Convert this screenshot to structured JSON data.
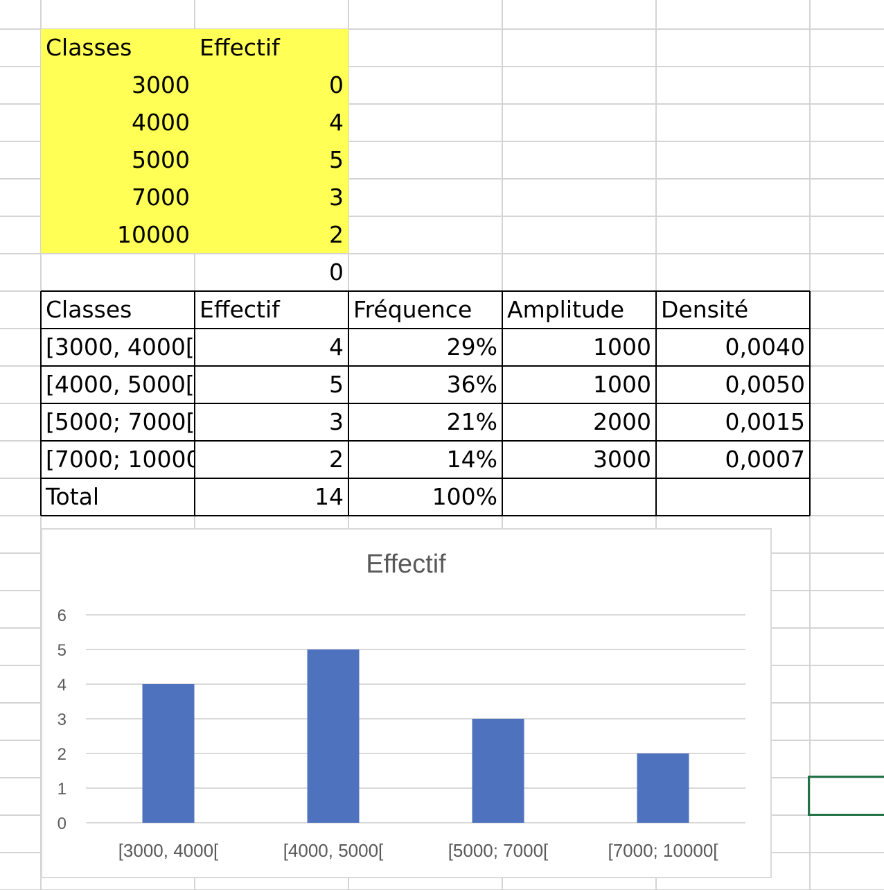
{
  "input_table": {
    "headers": [
      "Classes",
      "Effectif"
    ],
    "rows": [
      [
        "3000",
        "0"
      ],
      [
        "4000",
        "4"
      ],
      [
        "5000",
        "5"
      ],
      [
        "7000",
        "3"
      ],
      [
        "10000",
        "2"
      ],
      [
        "",
        "0"
      ]
    ]
  },
  "summary_table": {
    "headers": [
      "Classes",
      "Effectif",
      "Fréquence",
      "Amplitude",
      "Densité"
    ],
    "rows": [
      [
        "[3000, 4000[",
        "4",
        "29%",
        "1000",
        "0,0040"
      ],
      [
        "[4000, 5000[",
        "5",
        "36%",
        "1000",
        "0,0050"
      ],
      [
        "[5000; 7000[",
        "3",
        "21%",
        "2000",
        "0,0015"
      ],
      [
        "[7000; 10000",
        "2",
        "14%",
        "3000",
        "0,0007"
      ],
      [
        "Total",
        "14",
        "100%",
        "",
        ""
      ]
    ]
  },
  "chart_data": {
    "type": "bar",
    "title": "Effectif",
    "categories": [
      "[3000, 4000[",
      "[4000, 5000[",
      "[5000; 7000[",
      "[7000; 10000["
    ],
    "values": [
      4,
      5,
      3,
      2
    ],
    "ylim": [
      0,
      6
    ],
    "yticks": [
      0,
      1,
      2,
      3,
      4,
      5,
      6
    ],
    "xlabel": "",
    "ylabel": "",
    "grid": true,
    "legend": "none",
    "bar_color": "#4f72be"
  },
  "colors": {
    "highlight": "#ffff55",
    "selection": "#217346"
  }
}
